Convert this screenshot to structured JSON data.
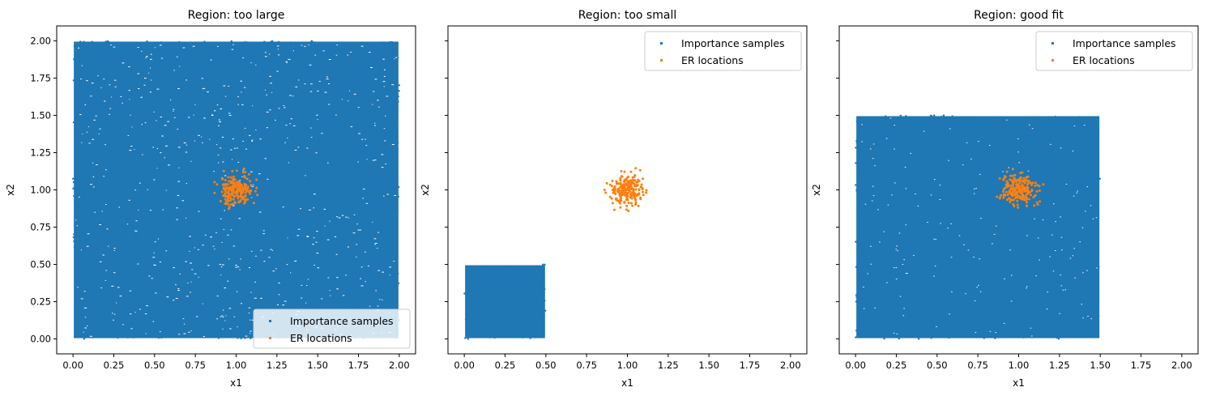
{
  "colors": {
    "importance": "#1f77b4",
    "er": "#ff7f0e"
  },
  "chart_data": [
    {
      "type": "scatter",
      "title": "Region: too large",
      "xlabel": "x1",
      "ylabel": "x2",
      "xlim": [
        -0.1,
        2.1
      ],
      "ylim": [
        -0.1,
        2.1
      ],
      "xticks": [
        "0.00",
        "0.25",
        "0.50",
        "0.75",
        "1.00",
        "1.25",
        "1.50",
        "1.75",
        "2.00"
      ],
      "yticks": [
        "0.00",
        "0.25",
        "0.50",
        "0.75",
        "1.00",
        "1.25",
        "1.50",
        "1.75",
        "2.00"
      ],
      "show_ytick_labels": true,
      "legend": "lower right",
      "series": [
        {
          "name": "Importance samples",
          "distribution": "uniform",
          "x_range": [
            0,
            2
          ],
          "y_range": [
            0,
            2
          ]
        },
        {
          "name": "ER locations",
          "distribution": "cluster",
          "center": [
            1.0,
            1.0
          ],
          "radius": 0.12
        }
      ]
    },
    {
      "type": "scatter",
      "title": "Region: too small",
      "xlabel": "x1",
      "ylabel": "x2",
      "xlim": [
        -0.1,
        2.1
      ],
      "ylim": [
        -0.1,
        2.1
      ],
      "xticks": [
        "0.00",
        "0.25",
        "0.50",
        "0.75",
        "1.00",
        "1.25",
        "1.50",
        "1.75",
        "2.00"
      ],
      "yticks": [
        "0.00",
        "0.25",
        "0.50",
        "0.75",
        "1.00",
        "1.25",
        "1.50",
        "1.75",
        "2.00"
      ],
      "show_ytick_labels": false,
      "legend": "upper right",
      "series": [
        {
          "name": "Importance samples",
          "distribution": "uniform",
          "x_range": [
            0,
            0.5
          ],
          "y_range": [
            0,
            0.5
          ]
        },
        {
          "name": "ER locations",
          "distribution": "cluster",
          "center": [
            1.0,
            1.0
          ],
          "radius": 0.12
        }
      ]
    },
    {
      "type": "scatter",
      "title": "Region: good fit",
      "xlabel": "x1",
      "ylabel": "x2",
      "xlim": [
        -0.1,
        2.1
      ],
      "ylim": [
        -0.1,
        2.1
      ],
      "xticks": [
        "0.00",
        "0.25",
        "0.50",
        "0.75",
        "1.00",
        "1.25",
        "1.50",
        "1.75",
        "2.00"
      ],
      "yticks": [
        "0.00",
        "0.25",
        "0.50",
        "0.75",
        "1.00",
        "1.25",
        "1.50",
        "1.75",
        "2.00"
      ],
      "show_ytick_labels": false,
      "legend": "upper right",
      "series": [
        {
          "name": "Importance samples",
          "distribution": "uniform",
          "x_range": [
            0,
            1.5
          ],
          "y_range": [
            0,
            1.5
          ]
        },
        {
          "name": "ER locations",
          "distribution": "cluster",
          "center": [
            1.0,
            1.0
          ],
          "radius": 0.12
        }
      ]
    }
  ]
}
